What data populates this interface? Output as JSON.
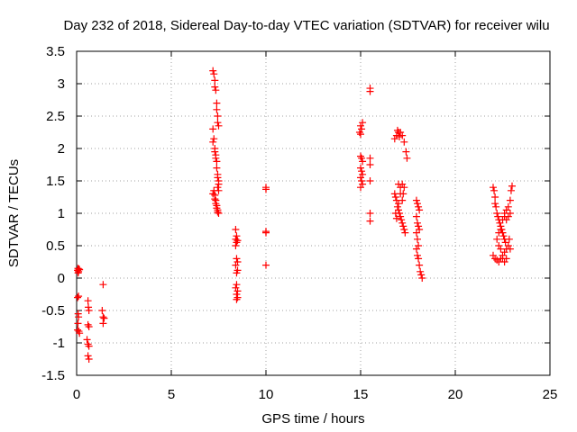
{
  "chart_data": {
    "type": "scatter",
    "title": "Day 232 of 2018, Sidereal Day-to-day VTEC variation (SDTVAR) for receiver wilu",
    "xlabel": "GPS time / hours",
    "ylabel": "SDTVAR / TECUs",
    "xlim": [
      0,
      25
    ],
    "ylim": [
      -1.5,
      3.5
    ],
    "xticks": [
      "0",
      "5",
      "10",
      "15",
      "20",
      "25"
    ],
    "yticks": [
      "-1.5",
      "-1",
      "-0.5",
      "0",
      "0.5",
      "1",
      "1.5",
      "2",
      "2.5",
      "3",
      "3.5"
    ],
    "xtick_values": [
      0,
      5,
      10,
      15,
      20,
      25
    ],
    "ytick_values": [
      -1.5,
      -1,
      -0.5,
      0,
      0.5,
      1,
      1.5,
      2,
      2.5,
      3,
      3.5
    ],
    "grid": true,
    "marker": "+",
    "color": "#ff0000",
    "series": [
      {
        "name": "SDTVAR",
        "points": [
          [
            0.05,
            0.12
          ],
          [
            0.07,
            0.15
          ],
          [
            0.1,
            0.1
          ],
          [
            0.12,
            0.14
          ],
          [
            0.08,
            0.08
          ],
          [
            0.15,
            0.13
          ],
          [
            0.05,
            -0.3
          ],
          [
            0.1,
            -0.28
          ],
          [
            0.08,
            -0.55
          ],
          [
            0.1,
            -0.6
          ],
          [
            0.07,
            -0.7
          ],
          [
            0.05,
            -0.8
          ],
          [
            0.12,
            -0.82
          ],
          [
            0.15,
            -0.85
          ],
          [
            0.6,
            -0.35
          ],
          [
            0.62,
            -0.45
          ],
          [
            0.65,
            -0.5
          ],
          [
            0.6,
            -0.72
          ],
          [
            0.65,
            -0.75
          ],
          [
            0.55,
            -0.95
          ],
          [
            0.6,
            -1.02
          ],
          [
            0.65,
            -1.05
          ],
          [
            0.6,
            -1.2
          ],
          [
            0.65,
            -1.25
          ],
          [
            1.4,
            -0.1
          ],
          [
            1.35,
            -0.5
          ],
          [
            1.4,
            -0.6
          ],
          [
            1.45,
            -0.62
          ],
          [
            1.4,
            -0.7
          ],
          [
            7.2,
            3.2
          ],
          [
            7.25,
            3.15
          ],
          [
            7.3,
            3.05
          ],
          [
            7.3,
            2.95
          ],
          [
            7.35,
            2.9
          ],
          [
            7.4,
            2.7
          ],
          [
            7.45,
            2.5
          ],
          [
            7.45,
            2.4
          ],
          [
            7.5,
            2.35
          ],
          [
            7.4,
            2.6
          ],
          [
            7.2,
            2.3
          ],
          [
            7.25,
            2.15
          ],
          [
            7.2,
            2.1
          ],
          [
            7.3,
            2.0
          ],
          [
            7.3,
            1.95
          ],
          [
            7.35,
            1.9
          ],
          [
            7.35,
            1.85
          ],
          [
            7.4,
            1.8
          ],
          [
            7.4,
            1.7
          ],
          [
            7.45,
            1.6
          ],
          [
            7.45,
            1.55
          ],
          [
            7.5,
            1.5
          ],
          [
            7.5,
            1.45
          ],
          [
            7.45,
            1.4
          ],
          [
            7.5,
            1.35
          ],
          [
            7.25,
            1.35
          ],
          [
            7.2,
            1.3
          ],
          [
            7.3,
            1.28
          ],
          [
            7.3,
            1.22
          ],
          [
            7.35,
            1.2
          ],
          [
            7.35,
            1.15
          ],
          [
            7.4,
            1.12
          ],
          [
            7.4,
            1.08
          ],
          [
            7.45,
            1.05
          ],
          [
            7.45,
            1.02
          ],
          [
            7.5,
            1.0
          ],
          [
            8.4,
            0.75
          ],
          [
            8.45,
            0.65
          ],
          [
            8.4,
            0.6
          ],
          [
            8.5,
            0.58
          ],
          [
            8.45,
            0.55
          ],
          [
            8.4,
            0.5
          ],
          [
            8.45,
            0.3
          ],
          [
            8.5,
            0.25
          ],
          [
            8.4,
            0.2
          ],
          [
            8.5,
            0.12
          ],
          [
            8.45,
            0.08
          ],
          [
            8.45,
            -0.1
          ],
          [
            8.4,
            -0.15
          ],
          [
            8.5,
            -0.2
          ],
          [
            8.45,
            -0.25
          ],
          [
            8.5,
            -0.3
          ],
          [
            8.45,
            -0.33
          ],
          [
            10.0,
            1.4
          ],
          [
            10.0,
            1.37
          ],
          [
            10.0,
            0.72
          ],
          [
            10.0,
            0.7
          ],
          [
            10.0,
            0.2
          ],
          [
            15.0,
            2.35
          ],
          [
            15.05,
            2.3
          ],
          [
            14.95,
            2.25
          ],
          [
            15.0,
            2.22
          ],
          [
            15.1,
            2.4
          ],
          [
            15.0,
            1.88
          ],
          [
            15.05,
            1.85
          ],
          [
            15.1,
            1.8
          ],
          [
            15.0,
            1.7
          ],
          [
            15.05,
            1.65
          ],
          [
            15.1,
            1.6
          ],
          [
            15.0,
            1.55
          ],
          [
            15.05,
            1.5
          ],
          [
            15.1,
            1.45
          ],
          [
            15.0,
            1.4
          ],
          [
            15.5,
            2.93
          ],
          [
            15.5,
            2.88
          ],
          [
            15.5,
            1.85
          ],
          [
            15.5,
            1.75
          ],
          [
            15.5,
            1.5
          ],
          [
            15.5,
            1.0
          ],
          [
            15.5,
            0.88
          ],
          [
            16.8,
            2.15
          ],
          [
            16.9,
            2.2
          ],
          [
            17.0,
            2.25
          ],
          [
            17.1,
            2.25
          ],
          [
            17.2,
            2.2
          ],
          [
            17.3,
            2.1
          ],
          [
            17.4,
            1.95
          ],
          [
            17.45,
            1.85
          ],
          [
            16.95,
            2.28
          ],
          [
            17.05,
            2.18
          ],
          [
            16.8,
            1.3
          ],
          [
            16.85,
            1.25
          ],
          [
            16.9,
            1.2
          ],
          [
            16.95,
            1.1
          ],
          [
            17.0,
            1.05
          ],
          [
            17.05,
            1.0
          ],
          [
            17.1,
            0.95
          ],
          [
            17.15,
            0.9
          ],
          [
            17.2,
            0.85
          ],
          [
            17.25,
            0.8
          ],
          [
            17.3,
            0.75
          ],
          [
            17.35,
            0.7
          ],
          [
            17.0,
            1.45
          ],
          [
            17.1,
            1.4
          ],
          [
            17.2,
            1.45
          ],
          [
            17.3,
            1.4
          ],
          [
            17.25,
            1.3
          ],
          [
            17.2,
            1.2
          ],
          [
            16.85,
            1.0
          ],
          [
            16.9,
            0.92
          ],
          [
            17.0,
            1.15
          ],
          [
            17.1,
            1.3
          ],
          [
            17.95,
            1.2
          ],
          [
            18.0,
            1.15
          ],
          [
            18.05,
            1.1
          ],
          [
            18.1,
            1.05
          ],
          [
            17.95,
            0.95
          ],
          [
            18.0,
            0.85
          ],
          [
            18.05,
            0.8
          ],
          [
            18.1,
            0.75
          ],
          [
            17.95,
            0.7
          ],
          [
            18.0,
            0.6
          ],
          [
            18.05,
            0.5
          ],
          [
            17.95,
            0.45
          ],
          [
            18.0,
            0.35
          ],
          [
            18.05,
            0.3
          ],
          [
            18.1,
            0.2
          ],
          [
            18.15,
            0.1
          ],
          [
            18.2,
            0.05
          ],
          [
            18.25,
            0.0
          ],
          [
            22.0,
            1.4
          ],
          [
            22.05,
            1.35
          ],
          [
            22.1,
            1.25
          ],
          [
            22.1,
            1.15
          ],
          [
            22.15,
            1.1
          ],
          [
            22.2,
            1.0
          ],
          [
            22.25,
            0.95
          ],
          [
            22.3,
            0.9
          ],
          [
            22.35,
            0.85
          ],
          [
            22.4,
            0.8
          ],
          [
            22.45,
            0.75
          ],
          [
            22.5,
            0.7
          ],
          [
            22.55,
            0.65
          ],
          [
            22.6,
            0.6
          ],
          [
            22.65,
            0.55
          ],
          [
            22.0,
            0.35
          ],
          [
            22.1,
            0.3
          ],
          [
            22.2,
            0.28
          ],
          [
            22.3,
            0.25
          ],
          [
            22.4,
            0.3
          ],
          [
            22.5,
            0.35
          ],
          [
            22.6,
            0.4
          ],
          [
            22.7,
            0.45
          ],
          [
            22.8,
            0.5
          ],
          [
            22.9,
            0.45
          ],
          [
            22.2,
            0.6
          ],
          [
            22.3,
            0.7
          ],
          [
            22.4,
            0.75
          ],
          [
            22.5,
            0.9
          ],
          [
            22.6,
            1.0
          ],
          [
            22.7,
            1.05
          ],
          [
            22.8,
            1.1
          ],
          [
            22.9,
            1.2
          ],
          [
            22.95,
            1.35
          ],
          [
            23.0,
            1.42
          ],
          [
            22.6,
            0.95
          ],
          [
            22.7,
            0.9
          ],
          [
            22.8,
            0.95
          ],
          [
            22.9,
            1.0
          ],
          [
            22.3,
            0.5
          ],
          [
            22.4,
            0.45
          ],
          [
            22.5,
            0.3
          ],
          [
            22.6,
            0.25
          ],
          [
            22.7,
            0.3
          ],
          [
            22.85,
            0.6
          ]
        ]
      }
    ]
  }
}
